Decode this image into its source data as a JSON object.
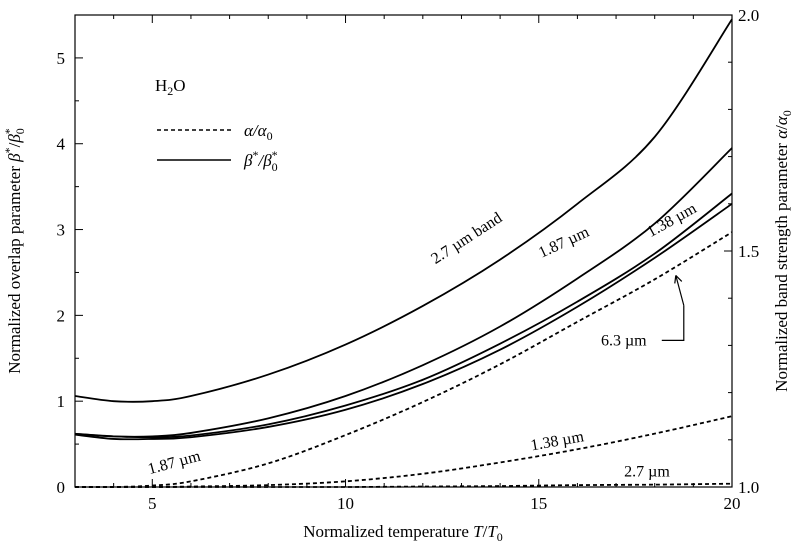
{
  "chart_data": {
    "type": "line",
    "title": "",
    "species": "H2O",
    "xlabel": "Normalized temperature T/T0",
    "ylabel_left": "Normalized overlap parameter β*/β*0",
    "ylabel_right": "Normalized band strength parameter α/α0",
    "xlim": [
      3,
      20
    ],
    "ylim_left": [
      0,
      5.5
    ],
    "ylim_right": [
      1.0,
      2.0
    ],
    "x_ticks": [
      5,
      10,
      15,
      20
    ],
    "y_ticks_left": [
      0,
      1,
      2,
      3,
      4,
      5
    ],
    "y_ticks_right": [
      1.0,
      1.5,
      2.0
    ],
    "legend": {
      "placement": "top-left",
      "entries": [
        {
          "label": "α/α0",
          "style": "dashed"
        },
        {
          "label": "β*/β*0",
          "style": "solid"
        }
      ]
    },
    "series": [
      {
        "name": "β*/β*0 2.7 µm band",
        "axis": "left",
        "style": "solid",
        "x": [
          3,
          4,
          5,
          6,
          8,
          10,
          12,
          14,
          16,
          18,
          20
        ],
        "y": [
          1.06,
          1.0,
          1.0,
          1.06,
          1.31,
          1.66,
          2.11,
          2.65,
          3.3,
          4.08,
          5.45
        ]
      },
      {
        "name": "β*/β*0 1.87 µm",
        "axis": "left",
        "style": "solid",
        "x": [
          3,
          4,
          5,
          6,
          8,
          10,
          12,
          14,
          16,
          18,
          20
        ],
        "y": [
          0.62,
          0.59,
          0.59,
          0.63,
          0.8,
          1.06,
          1.42,
          1.87,
          2.43,
          3.07,
          3.95
        ]
      },
      {
        "name": "β*/β*0 1.38 µm",
        "axis": "left",
        "style": "solid",
        "x": [
          3,
          4,
          5,
          6,
          8,
          10,
          12,
          14,
          16,
          18,
          20
        ],
        "y": [
          0.62,
          0.59,
          0.58,
          0.6,
          0.73,
          0.95,
          1.25,
          1.67,
          2.16,
          2.72,
          3.42
        ]
      },
      {
        "name": "β*/β*0 6.3 µm",
        "axis": "left",
        "style": "solid",
        "x": [
          3,
          4,
          5,
          6,
          8,
          10,
          12,
          14,
          16,
          18,
          20
        ],
        "y": [
          0.61,
          0.56,
          0.56,
          0.58,
          0.7,
          0.9,
          1.2,
          1.6,
          2.1,
          2.67,
          3.3
        ]
      },
      {
        "name": "α/α0 1.87 µm",
        "axis": "right",
        "style": "dashed",
        "x": [
          3,
          4,
          5,
          6,
          8,
          10,
          12,
          14,
          16,
          18,
          20
        ],
        "y": [
          1.0,
          1.0,
          1.003,
          1.012,
          1.05,
          1.11,
          1.18,
          1.26,
          1.35,
          1.44,
          1.54
        ]
      },
      {
        "name": "α/α0 1.38 µm",
        "axis": "right",
        "style": "dashed",
        "x": [
          3,
          4,
          5,
          6,
          8,
          10,
          12,
          14,
          16,
          18,
          20
        ],
        "y": [
          1.0,
          1.0,
          1.0,
          1.001,
          1.004,
          1.012,
          1.028,
          1.052,
          1.08,
          1.113,
          1.15
        ]
      },
      {
        "name": "α/α0 2.7 µm",
        "axis": "right",
        "style": "dashed",
        "x": [
          3,
          5,
          8,
          10,
          12,
          14,
          16,
          18,
          20
        ],
        "y": [
          1.0,
          1.0,
          1.0,
          1.0,
          1.001,
          1.002,
          1.004,
          1.005,
          1.007
        ]
      }
    ],
    "annotations": [
      {
        "text": "2.7 µm band",
        "x": 13.2,
        "y": 2.85,
        "rotate": -33,
        "axis": "left"
      },
      {
        "text": "1.87 µm",
        "x": 15.7,
        "y": 2.8,
        "rotate": -25,
        "axis": "left"
      },
      {
        "text": "1.38 µm",
        "x": 18.5,
        "y": 3.06,
        "rotate": -29,
        "axis": "left"
      },
      {
        "text": "6.3 µm",
        "x": 17.2,
        "y": 1.65,
        "rotate": 0,
        "axis": "left"
      },
      {
        "text": "1.87 µm",
        "x": 5.6,
        "y": 0.23,
        "rotate": -15,
        "axis": "left"
      },
      {
        "text": "1.38 µm",
        "x": 15.5,
        "y": 0.48,
        "rotate": -10,
        "axis": "left"
      },
      {
        "text": "2.7 µm",
        "x": 17.8,
        "y": 0.12,
        "rotate": 0,
        "axis": "left"
      }
    ],
    "grid": false
  }
}
